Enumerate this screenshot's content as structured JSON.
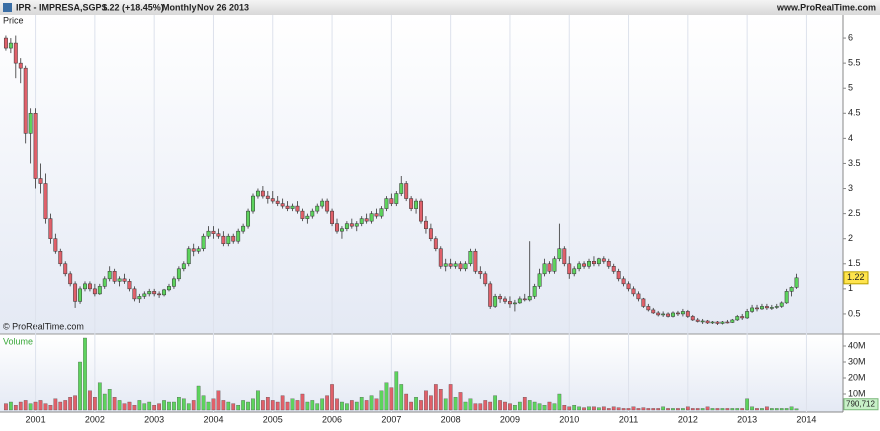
{
  "chart_data": {
    "type": "candlestick",
    "symbol": "IPR - IMPRESA,SGPS",
    "change": "1.22 (+18.45%)",
    "period": "Monthly",
    "date": "Nov 26 2013",
    "source": "www.ProRealTime.com",
    "price_label": "Price",
    "volume_label": "Volume",
    "copyright": "© ProRealTime.com",
    "up_color": "#5dd35d",
    "down_color": "#e0606a",
    "xlim": [
      -1.2,
      169.4
    ],
    "xticks": [
      {
        "value": 6,
        "label": "2001"
      },
      {
        "value": 18,
        "label": "2002"
      },
      {
        "value": 30,
        "label": "2003"
      },
      {
        "value": 42,
        "label": "2004"
      },
      {
        "value": 54,
        "label": "2005"
      },
      {
        "value": 66,
        "label": "2006"
      },
      {
        "value": 78,
        "label": "2007"
      },
      {
        "value": 90,
        "label": "2008"
      },
      {
        "value": 102,
        "label": "2009"
      },
      {
        "value": 114,
        "label": "2010"
      },
      {
        "value": 126,
        "label": "2011"
      },
      {
        "value": 138,
        "label": "2012"
      },
      {
        "value": 150,
        "label": "2013"
      },
      {
        "value": 162,
        "label": "2014"
      }
    ],
    "ylim": [
      0.12,
      6.36
    ],
    "yticks": [
      0.5,
      1,
      1.5,
      2,
      2.5,
      3,
      3.5,
      4,
      4.5,
      5,
      5.5,
      6
    ],
    "volume_ylim": [
      0,
      46250000
    ],
    "volume_yticks": [
      {
        "value": 10000000,
        "label": "10M"
      },
      {
        "value": 20000000,
        "label": "20M"
      },
      {
        "value": 30000000,
        "label": "30M"
      },
      {
        "value": 40000000,
        "label": "40M"
      }
    ],
    "volume_last_label": "790,712",
    "ohlc": [
      [
        6.0,
        6.05,
        5.75,
        5.8
      ],
      [
        5.8,
        6.0,
        5.7,
        5.9
      ],
      [
        5.9,
        6.05,
        5.2,
        5.5
      ],
      [
        5.5,
        5.6,
        5.1,
        5.4
      ],
      [
        5.4,
        5.45,
        3.9,
        4.1
      ],
      [
        4.1,
        4.6,
        3.5,
        4.5
      ],
      [
        4.5,
        4.6,
        3.0,
        3.2
      ],
      [
        3.2,
        3.5,
        2.9,
        3.1
      ],
      [
        3.1,
        3.3,
        2.3,
        2.4
      ],
      [
        2.4,
        2.5,
        1.9,
        2.0
      ],
      [
        2.0,
        2.1,
        1.7,
        1.75
      ],
      [
        1.75,
        1.8,
        1.45,
        1.5
      ],
      [
        1.5,
        1.55,
        1.25,
        1.3
      ],
      [
        1.3,
        1.35,
        1.05,
        1.1
      ],
      [
        1.1,
        1.15,
        0.62,
        0.75
      ],
      [
        0.75,
        1.05,
        0.7,
        1.0
      ],
      [
        1.0,
        1.15,
        0.95,
        1.1
      ],
      [
        1.1,
        1.15,
        0.95,
        1.0
      ],
      [
        1.0,
        1.1,
        0.85,
        0.9
      ],
      [
        0.9,
        1.1,
        0.88,
        1.05
      ],
      [
        1.05,
        1.25,
        1.0,
        1.2
      ],
      [
        1.2,
        1.45,
        1.15,
        1.35
      ],
      [
        1.35,
        1.4,
        1.1,
        1.15
      ],
      [
        1.15,
        1.25,
        1.05,
        1.2
      ],
      [
        1.2,
        1.3,
        1.1,
        1.15
      ],
      [
        1.15,
        1.2,
        0.95,
        1.0
      ],
      [
        1.0,
        1.05,
        0.75,
        0.8
      ],
      [
        0.8,
        0.9,
        0.72,
        0.85
      ],
      [
        0.85,
        0.95,
        0.8,
        0.9
      ],
      [
        0.9,
        1.0,
        0.85,
        0.95
      ],
      [
        0.95,
        1.0,
        0.85,
        0.9
      ],
      [
        0.9,
        0.95,
        0.82,
        0.88
      ],
      [
        0.88,
        1.0,
        0.85,
        0.98
      ],
      [
        0.98,
        1.1,
        0.95,
        1.05
      ],
      [
        1.05,
        1.25,
        1.0,
        1.2
      ],
      [
        1.2,
        1.45,
        1.15,
        1.4
      ],
      [
        1.4,
        1.55,
        1.35,
        1.5
      ],
      [
        1.5,
        1.85,
        1.45,
        1.8
      ],
      [
        1.8,
        1.9,
        1.65,
        1.75
      ],
      [
        1.75,
        1.85,
        1.7,
        1.8
      ],
      [
        1.8,
        2.1,
        1.75,
        2.05
      ],
      [
        2.05,
        2.25,
        2.0,
        2.15
      ],
      [
        2.15,
        2.25,
        2.0,
        2.1
      ],
      [
        2.1,
        2.2,
        2.0,
        2.05
      ],
      [
        2.05,
        2.15,
        1.85,
        1.9
      ],
      [
        1.9,
        2.1,
        1.85,
        2.05
      ],
      [
        2.05,
        2.1,
        1.9,
        1.95
      ],
      [
        1.95,
        2.2,
        1.9,
        2.15
      ],
      [
        2.15,
        2.3,
        2.1,
        2.25
      ],
      [
        2.25,
        2.6,
        2.2,
        2.55
      ],
      [
        2.55,
        2.9,
        2.5,
        2.85
      ],
      [
        2.85,
        3.0,
        2.8,
        2.95
      ],
      [
        2.95,
        3.05,
        2.8,
        2.85
      ],
      [
        2.85,
        2.95,
        2.7,
        2.8
      ],
      [
        2.8,
        2.95,
        2.7,
        2.75
      ],
      [
        2.75,
        2.85,
        2.65,
        2.7
      ],
      [
        2.7,
        2.8,
        2.6,
        2.65
      ],
      [
        2.65,
        2.75,
        2.55,
        2.6
      ],
      [
        2.6,
        2.7,
        2.55,
        2.65
      ],
      [
        2.65,
        2.75,
        2.5,
        2.55
      ],
      [
        2.55,
        2.6,
        2.35,
        2.4
      ],
      [
        2.4,
        2.5,
        2.3,
        2.45
      ],
      [
        2.45,
        2.6,
        2.4,
        2.55
      ],
      [
        2.55,
        2.7,
        2.5,
        2.65
      ],
      [
        2.65,
        2.8,
        2.6,
        2.75
      ],
      [
        2.75,
        2.8,
        2.5,
        2.55
      ],
      [
        2.55,
        2.6,
        2.25,
        2.3
      ],
      [
        2.3,
        2.4,
        2.1,
        2.15
      ],
      [
        2.15,
        2.25,
        2.0,
        2.2
      ],
      [
        2.2,
        2.35,
        2.15,
        2.3
      ],
      [
        2.3,
        2.4,
        2.2,
        2.25
      ],
      [
        2.25,
        2.35,
        2.15,
        2.3
      ],
      [
        2.3,
        2.45,
        2.25,
        2.4
      ],
      [
        2.4,
        2.5,
        2.3,
        2.35
      ],
      [
        2.35,
        2.55,
        2.3,
        2.5
      ],
      [
        2.5,
        2.6,
        2.4,
        2.45
      ],
      [
        2.45,
        2.65,
        2.4,
        2.6
      ],
      [
        2.6,
        2.85,
        2.55,
        2.8
      ],
      [
        2.8,
        2.9,
        2.65,
        2.7
      ],
      [
        2.7,
        2.95,
        2.65,
        2.9
      ],
      [
        2.9,
        3.25,
        2.85,
        3.1
      ],
      [
        3.1,
        3.15,
        2.75,
        2.8
      ],
      [
        2.8,
        2.85,
        2.55,
        2.6
      ],
      [
        2.6,
        2.8,
        2.5,
        2.75
      ],
      [
        2.75,
        2.8,
        2.3,
        2.35
      ],
      [
        2.35,
        2.45,
        2.1,
        2.2
      ],
      [
        2.2,
        2.3,
        1.95,
        2.0
      ],
      [
        2.0,
        2.05,
        1.75,
        1.8
      ],
      [
        1.8,
        1.85,
        1.4,
        1.45
      ],
      [
        1.45,
        1.6,
        1.35,
        1.5
      ],
      [
        1.5,
        1.6,
        1.4,
        1.45
      ],
      [
        1.45,
        1.55,
        1.4,
        1.5
      ],
      [
        1.5,
        1.55,
        1.35,
        1.4
      ],
      [
        1.4,
        1.55,
        1.35,
        1.5
      ],
      [
        1.5,
        1.8,
        1.45,
        1.75
      ],
      [
        1.75,
        1.8,
        1.3,
        1.35
      ],
      [
        1.35,
        1.45,
        1.2,
        1.3
      ],
      [
        1.3,
        1.35,
        1.05,
        1.1
      ],
      [
        1.1,
        1.15,
        0.6,
        0.65
      ],
      [
        0.65,
        0.9,
        0.62,
        0.85
      ],
      [
        0.85,
        0.9,
        0.72,
        0.8
      ],
      [
        0.8,
        0.85,
        0.7,
        0.75
      ],
      [
        0.75,
        0.85,
        0.62,
        0.7
      ],
      [
        0.7,
        0.78,
        0.55,
        0.72
      ],
      [
        0.72,
        0.85,
        0.7,
        0.8
      ],
      [
        0.8,
        0.9,
        0.75,
        0.78
      ],
      [
        0.78,
        1.95,
        0.75,
        0.85
      ],
      [
        0.85,
        1.1,
        0.8,
        1.05
      ],
      [
        1.05,
        1.4,
        1.0,
        1.3
      ],
      [
        1.3,
        1.6,
        1.25,
        1.5
      ],
      [
        1.5,
        1.55,
        1.3,
        1.35
      ],
      [
        1.35,
        1.65,
        1.3,
        1.6
      ],
      [
        1.6,
        2.3,
        1.55,
        1.8
      ],
      [
        1.8,
        1.85,
        1.45,
        1.5
      ],
      [
        1.5,
        1.65,
        1.2,
        1.3
      ],
      [
        1.3,
        1.45,
        1.25,
        1.4
      ],
      [
        1.4,
        1.55,
        1.35,
        1.5
      ],
      [
        1.5,
        1.55,
        1.4,
        1.45
      ],
      [
        1.45,
        1.6,
        1.4,
        1.55
      ],
      [
        1.55,
        1.65,
        1.45,
        1.5
      ],
      [
        1.5,
        1.62,
        1.45,
        1.6
      ],
      [
        1.6,
        1.65,
        1.5,
        1.55
      ],
      [
        1.55,
        1.6,
        1.4,
        1.45
      ],
      [
        1.45,
        1.5,
        1.3,
        1.35
      ],
      [
        1.35,
        1.4,
        1.15,
        1.2
      ],
      [
        1.2,
        1.25,
        1.05,
        1.1
      ],
      [
        1.1,
        1.15,
        0.95,
        1.0
      ],
      [
        1.0,
        1.05,
        0.85,
        0.9
      ],
      [
        0.9,
        0.95,
        0.75,
        0.8
      ],
      [
        0.8,
        0.82,
        0.62,
        0.65
      ],
      [
        0.65,
        0.7,
        0.55,
        0.58
      ],
      [
        0.58,
        0.62,
        0.5,
        0.52
      ],
      [
        0.52,
        0.56,
        0.45,
        0.48
      ],
      [
        0.48,
        0.55,
        0.44,
        0.5
      ],
      [
        0.5,
        0.53,
        0.43,
        0.45
      ],
      [
        0.45,
        0.55,
        0.43,
        0.52
      ],
      [
        0.52,
        0.56,
        0.46,
        0.5
      ],
      [
        0.5,
        0.6,
        0.45,
        0.55
      ],
      [
        0.55,
        0.58,
        0.42,
        0.45
      ],
      [
        0.45,
        0.48,
        0.36,
        0.38
      ],
      [
        0.38,
        0.42,
        0.33,
        0.35
      ],
      [
        0.35,
        0.4,
        0.3,
        0.36
      ],
      [
        0.36,
        0.38,
        0.3,
        0.32
      ],
      [
        0.32,
        0.36,
        0.3,
        0.34
      ],
      [
        0.34,
        0.36,
        0.28,
        0.31
      ],
      [
        0.31,
        0.36,
        0.29,
        0.34
      ],
      [
        0.34,
        0.38,
        0.31,
        0.33
      ],
      [
        0.33,
        0.4,
        0.32,
        0.38
      ],
      [
        0.38,
        0.48,
        0.36,
        0.45
      ],
      [
        0.45,
        0.5,
        0.38,
        0.42
      ],
      [
        0.42,
        0.6,
        0.4,
        0.55
      ],
      [
        0.55,
        0.68,
        0.52,
        0.62
      ],
      [
        0.62,
        0.68,
        0.55,
        0.6
      ],
      [
        0.6,
        0.7,
        0.58,
        0.65
      ],
      [
        0.65,
        0.7,
        0.58,
        0.62
      ],
      [
        0.62,
        0.68,
        0.58,
        0.63
      ],
      [
        0.63,
        0.7,
        0.6,
        0.65
      ],
      [
        0.65,
        0.75,
        0.62,
        0.72
      ],
      [
        0.72,
        1.0,
        0.7,
        0.95
      ],
      [
        0.95,
        1.05,
        0.85,
        1.03
      ],
      [
        1.03,
        1.3,
        1.0,
        1.22
      ]
    ],
    "volume": [
      4000000,
      5000000,
      3000000,
      5000000,
      6000000,
      4000000,
      5000000,
      6000000,
      4000000,
      3000000,
      7000000,
      5000000,
      6000000,
      8000000,
      9000000,
      30000000,
      45000000,
      12000000,
      8000000,
      17000000,
      10000000,
      13000000,
      8000000,
      6000000,
      4000000,
      5000000,
      3000000,
      6000000,
      4000000,
      5000000,
      3000000,
      4000000,
      6000000,
      5000000,
      5000000,
      8000000,
      7000000,
      4000000,
      6000000,
      15000000,
      9000000,
      5000000,
      7000000,
      12000000,
      6000000,
      5000000,
      4000000,
      3000000,
      6000000,
      5000000,
      7000000,
      12000000,
      6000000,
      8000000,
      6000000,
      5000000,
      9000000,
      5000000,
      7000000,
      6000000,
      10000000,
      5000000,
      6000000,
      4000000,
      7000000,
      9000000,
      16000000,
      7000000,
      5000000,
      4000000,
      6000000,
      5000000,
      8000000,
      6000000,
      9000000,
      7000000,
      12000000,
      17000000,
      14000000,
      24000000,
      16000000,
      10000000,
      5000000,
      8000000,
      6000000,
      12000000,
      9000000,
      16000000,
      13000000,
      7000000,
      16000000,
      8000000,
      11000000,
      5000000,
      7000000,
      4000000,
      4000000,
      6000000,
      5000000,
      9000000,
      6000000,
      5000000,
      4000000,
      3000000,
      5000000,
      8000000,
      6000000,
      5000000,
      4000000,
      3000000,
      5000000,
      4000000,
      10000000,
      3000000,
      2000000,
      3000000,
      2000000,
      1500000,
      2000000,
      2000000,
      1500000,
      2000000,
      1000000,
      2000000,
      1500000,
      1000000,
      1000000,
      2000000,
      1000000,
      1500000,
      1000000,
      1000000,
      1000000,
      2000000,
      1000000,
      1000000,
      1000000,
      1000000,
      2000000,
      1000000,
      1000000,
      1000000,
      2000000,
      1000000,
      1000000,
      1000000,
      1000000,
      1000000,
      1000000,
      1000000,
      7000000,
      2000000,
      1000000,
      1000000,
      2000000,
      1000000,
      1000000,
      1000000,
      1000000,
      2000000,
      790712
    ]
  }
}
